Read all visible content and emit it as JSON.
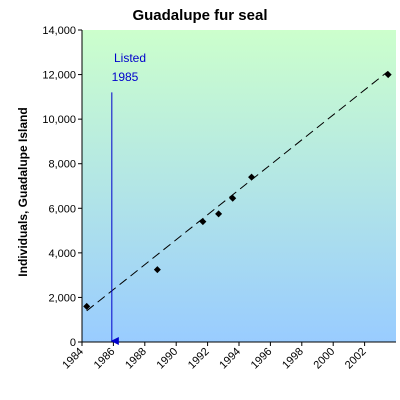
{
  "chart_data": {
    "type": "scatter",
    "title": "Guadalupe fur seal",
    "xlabel": "",
    "ylabel": "Individuals, Guadalupe Island",
    "xlim": [
      1984,
      2004
    ],
    "ylim": [
      0,
      14000
    ],
    "x_ticks": [
      "1984",
      "1986",
      "1988",
      "1990",
      "1992",
      "1994",
      "1996",
      "1998",
      "2000",
      "2002"
    ],
    "y_ticks": [
      "0",
      "2,000",
      "4,000",
      "6,000",
      "8,000",
      "10,000",
      "12,000",
      "14,000"
    ],
    "grid": false,
    "legend": "none",
    "series": [
      {
        "x": [
          1984.3,
          1988.8,
          1991.7,
          1992.7,
          1993.6,
          1994.8,
          2003.5
        ],
        "y": [
          1600,
          3250,
          5400,
          5750,
          6450,
          7400,
          12000
        ]
      }
    ],
    "trendline": {
      "style": "dashed",
      "x": [
        1984.3,
        2003.5
      ],
      "y": [
        1400,
        12150
      ]
    },
    "annotation": {
      "lines": [
        "Listed",
        "1985"
      ],
      "arrow_x": 1985.9,
      "arrow_from_y": 11200,
      "arrow_to_y": 0,
      "color": "#0000cc"
    },
    "colors": {
      "background_top": "#ccffcc",
      "background_bottom": "#99ccff",
      "points": "#000000",
      "trendline": "#000000"
    }
  }
}
